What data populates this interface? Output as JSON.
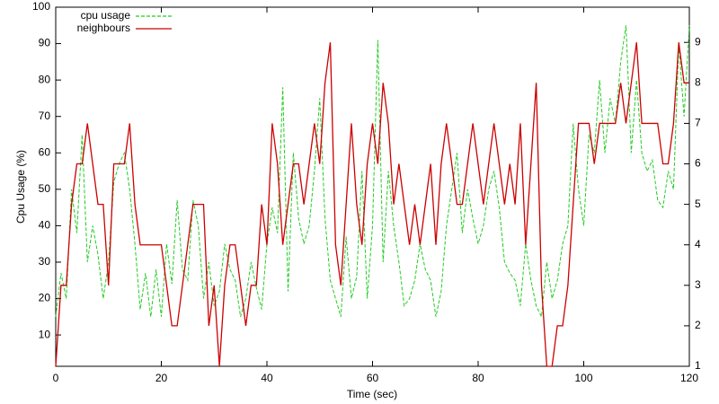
{
  "chart_data": {
    "type": "line",
    "x_label": "Time (sec)",
    "y_label": "Cpu Usage (%)",
    "x": [
      0,
      1,
      2,
      3,
      4,
      5,
      6,
      7,
      8,
      9,
      10,
      11,
      12,
      13,
      14,
      15,
      16,
      17,
      18,
      19,
      20,
      21,
      22,
      23,
      24,
      25,
      26,
      27,
      28,
      29,
      30,
      31,
      32,
      33,
      34,
      35,
      36,
      37,
      38,
      39,
      40,
      41,
      42,
      43,
      44,
      45,
      46,
      47,
      48,
      49,
      50,
      51,
      52,
      53,
      54,
      55,
      56,
      57,
      58,
      59,
      60,
      61,
      62,
      63,
      64,
      65,
      66,
      67,
      68,
      69,
      70,
      71,
      72,
      73,
      74,
      75,
      76,
      77,
      78,
      79,
      80,
      81,
      82,
      83,
      84,
      85,
      86,
      87,
      88,
      89,
      90,
      91,
      92,
      93,
      94,
      95,
      96,
      97,
      98,
      99,
      100,
      101,
      102,
      103,
      104,
      105,
      106,
      107,
      108,
      109,
      110,
      111,
      112,
      113,
      114,
      115,
      116,
      117,
      118,
      119,
      120
    ],
    "series": [
      {
        "name": "cpu usage",
        "color": "#22cc22",
        "dashed": true,
        "values": [
          15,
          27,
          20,
          50,
          38,
          65,
          30,
          40,
          32,
          20,
          30,
          52,
          57,
          60,
          50,
          35,
          17,
          27,
          15,
          28,
          15,
          35,
          24,
          47,
          28,
          25,
          47,
          40,
          20,
          30,
          18,
          22,
          35,
          28,
          25,
          15,
          20,
          30,
          23,
          17,
          35,
          45,
          38,
          78,
          22,
          60,
          42,
          35,
          40,
          55,
          75,
          42,
          25,
          20,
          15,
          37,
          20,
          26,
          55,
          20,
          40,
          91,
          30,
          55,
          40,
          30,
          18,
          20,
          25,
          35,
          28,
          25,
          15,
          22,
          40,
          50,
          60,
          38,
          50,
          42,
          35,
          40,
          50,
          55,
          45,
          30,
          27,
          25,
          18,
          35,
          25,
          18,
          15,
          30,
          20,
          25,
          35,
          40,
          68,
          50,
          40,
          65,
          60,
          80,
          60,
          75,
          68,
          85,
          95,
          60,
          80,
          60,
          55,
          58,
          47,
          45,
          55,
          50,
          90,
          70,
          95
        ]
      },
      {
        "name": "neighbours",
        "color": "#cc0000",
        "dashed": false,
        "axis": "y2",
        "values": [
          1,
          3,
          3,
          5,
          6,
          6,
          7,
          6,
          5,
          5,
          3,
          6,
          6,
          6,
          7,
          5,
          4,
          4,
          4,
          4,
          4,
          3,
          2,
          2,
          3,
          4,
          5,
          5,
          5,
          2,
          3,
          1,
          3,
          4,
          4,
          3,
          2,
          3,
          3,
          5,
          4,
          7,
          6,
          4,
          5,
          6,
          6,
          5,
          6,
          7,
          6,
          8,
          9,
          4,
          3,
          5,
          7,
          5,
          4,
          6,
          7,
          6,
          8,
          7,
          5,
          6,
          5,
          4,
          5,
          4,
          5,
          6,
          4,
          6,
          7,
          6,
          5,
          5,
          6,
          7,
          6,
          5,
          6,
          7,
          6,
          5,
          6,
          5,
          7,
          4,
          6,
          8,
          3,
          1,
          1,
          2,
          2,
          3,
          5,
          7,
          7,
          7,
          6,
          7,
          7,
          7,
          7,
          8,
          7,
          8,
          9,
          7,
          7,
          7,
          7,
          6,
          6,
          7,
          9,
          8,
          8
        ]
      }
    ],
    "xlim": [
      0,
      120
    ],
    "xticks": [
      0,
      20,
      40,
      60,
      80,
      100,
      120
    ],
    "ylim": [
      1.4,
      100
    ],
    "yticks": [
      10,
      20,
      30,
      40,
      50,
      60,
      70,
      80,
      90,
      100
    ],
    "y2lim": [
      1,
      9.87
    ],
    "y2ticks": [
      1,
      2,
      3,
      4,
      5,
      6,
      7,
      8,
      9
    ],
    "legend": "top-left"
  }
}
